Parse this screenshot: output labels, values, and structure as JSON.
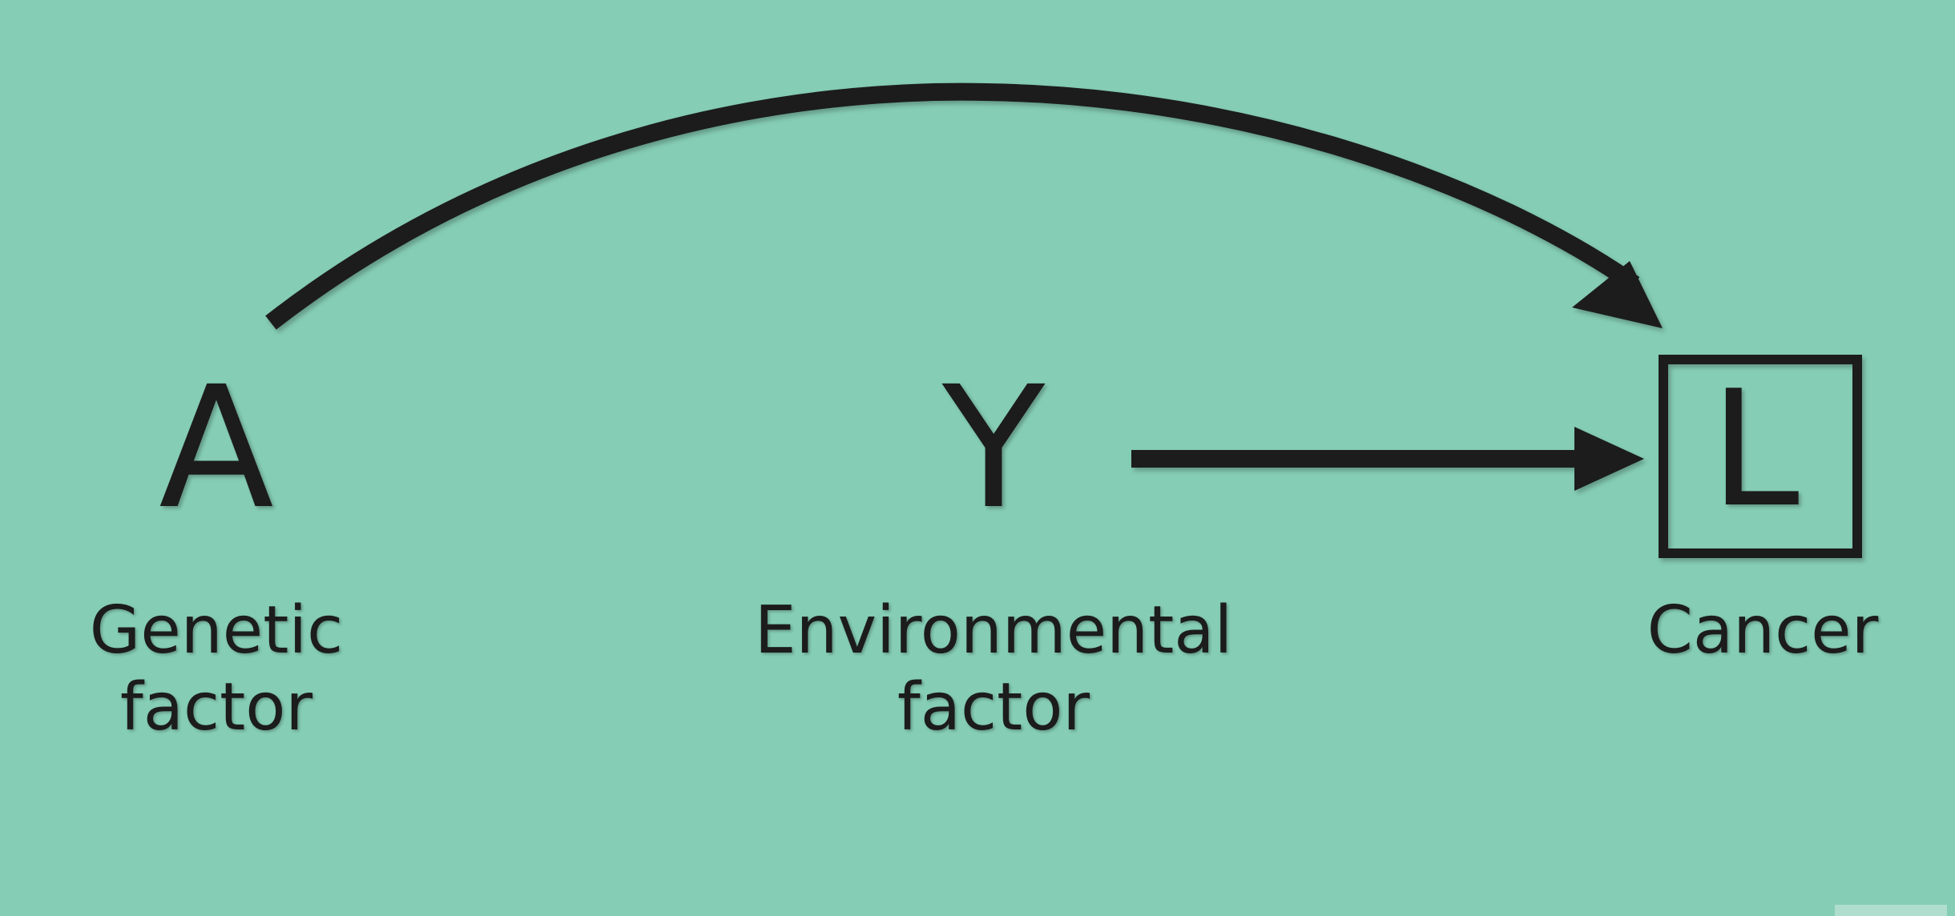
{
  "nodes": [
    {
      "id": "A",
      "letter": "A",
      "caption_lines": [
        "Genetic",
        "factor"
      ],
      "boxed": false
    },
    {
      "id": "Y",
      "letter": "Y",
      "caption_lines": [
        "Environmental",
        "factor"
      ],
      "boxed": false
    },
    {
      "id": "L",
      "letter": "L",
      "caption_lines": [
        "Cancer"
      ],
      "boxed": true
    }
  ],
  "edges": [
    {
      "from": "A",
      "to": "L",
      "style": "curved"
    },
    {
      "from": "Y",
      "to": "L",
      "style": "straight"
    }
  ],
  "colors": {
    "background": "#85cdb5",
    "ink": "#1c1c1c"
  }
}
